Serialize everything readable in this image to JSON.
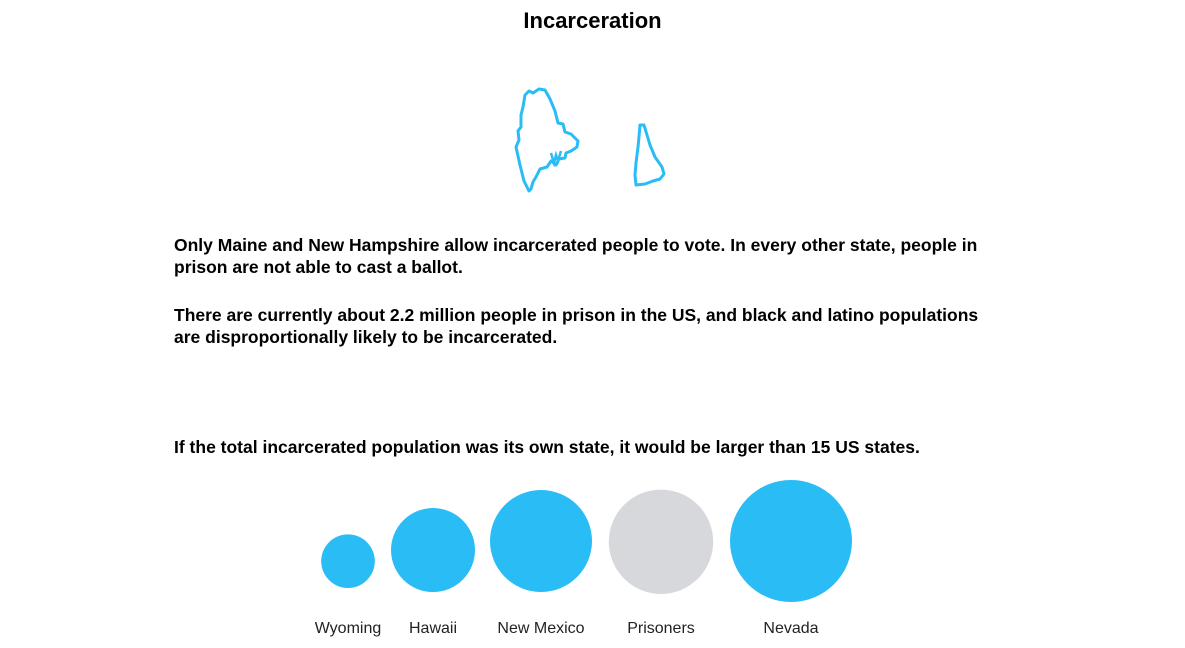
{
  "page": {
    "title": "Incarceration"
  },
  "maps": {
    "states": [
      "maine-outline-icon",
      "new-hampshire-outline-icon"
    ],
    "stroke_color": "#29bcf5"
  },
  "text": {
    "paragraph_1": "Only Maine and New Hampshire allow incarcerated people to vote. In every other state, people in prison are not able to cast a ballot.",
    "paragraph_2": "There are currently about 2.2 million people in prison in the US, and black and latino populations are disproportionally likely to be incarcerated.",
    "paragraph_3": "If the total incarcerated population was its own state, it would be larger than 15 US states."
  },
  "chart_data": {
    "type": "bubble",
    "title": "",
    "categories": [
      "Wyoming",
      "Hawaii",
      "New Mexico",
      "Prisoners",
      "Nevada"
    ],
    "values": [
      0.58,
      1.42,
      2.1,
      2.2,
      3.0
    ],
    "colors": [
      "#29bcf5",
      "#29bcf5",
      "#29bcf5",
      "#d7d8db",
      "#29bcf5"
    ],
    "size_encoding": "area"
  }
}
